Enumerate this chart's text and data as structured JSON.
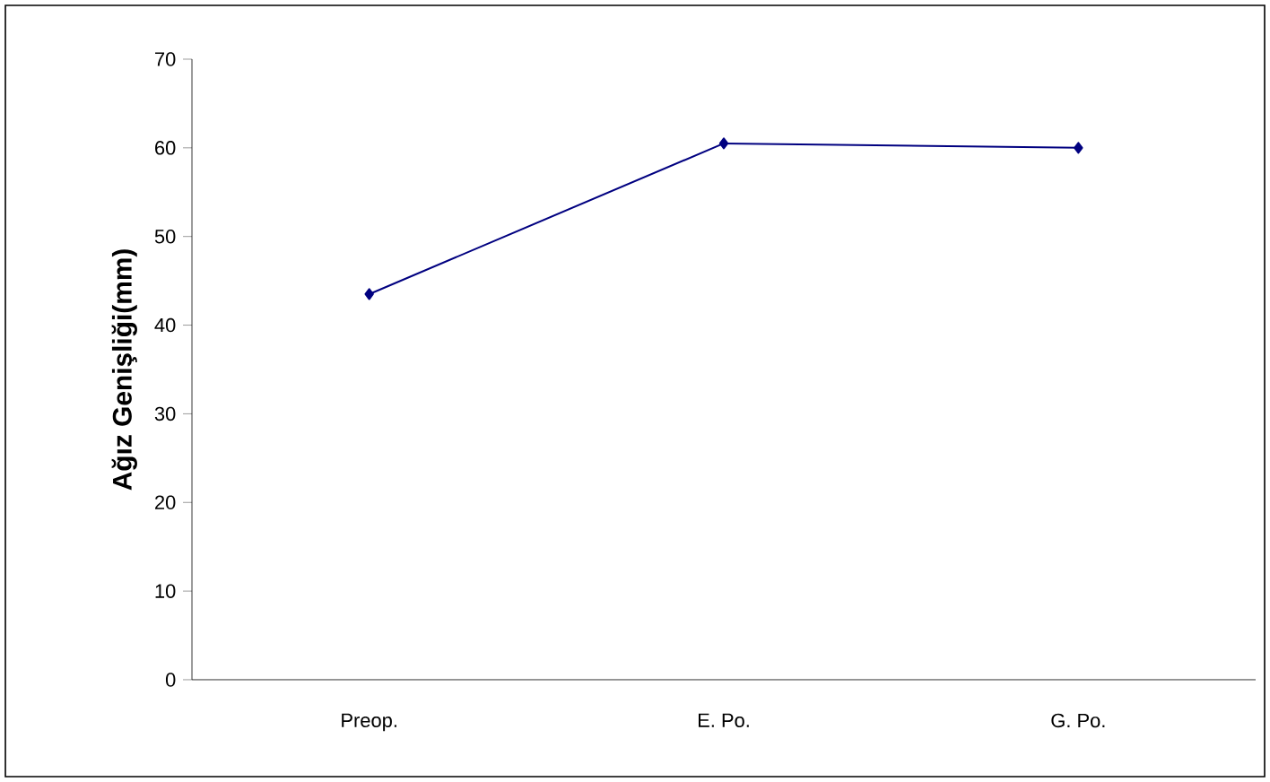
{
  "chart_data": {
    "type": "line",
    "ylabel": "Ağız Genişliği(mm)",
    "categories": [
      "Preop.",
      "E. Po.",
      "G. Po."
    ],
    "series": [
      {
        "color": "#000080",
        "values": [
          43.5,
          60.5,
          60
        ]
      }
    ],
    "ylim": [
      0,
      70
    ],
    "yticks": [
      0,
      10,
      20,
      30,
      40,
      50,
      60,
      70
    ],
    "marker": "diamond",
    "line_style": "solid"
  }
}
